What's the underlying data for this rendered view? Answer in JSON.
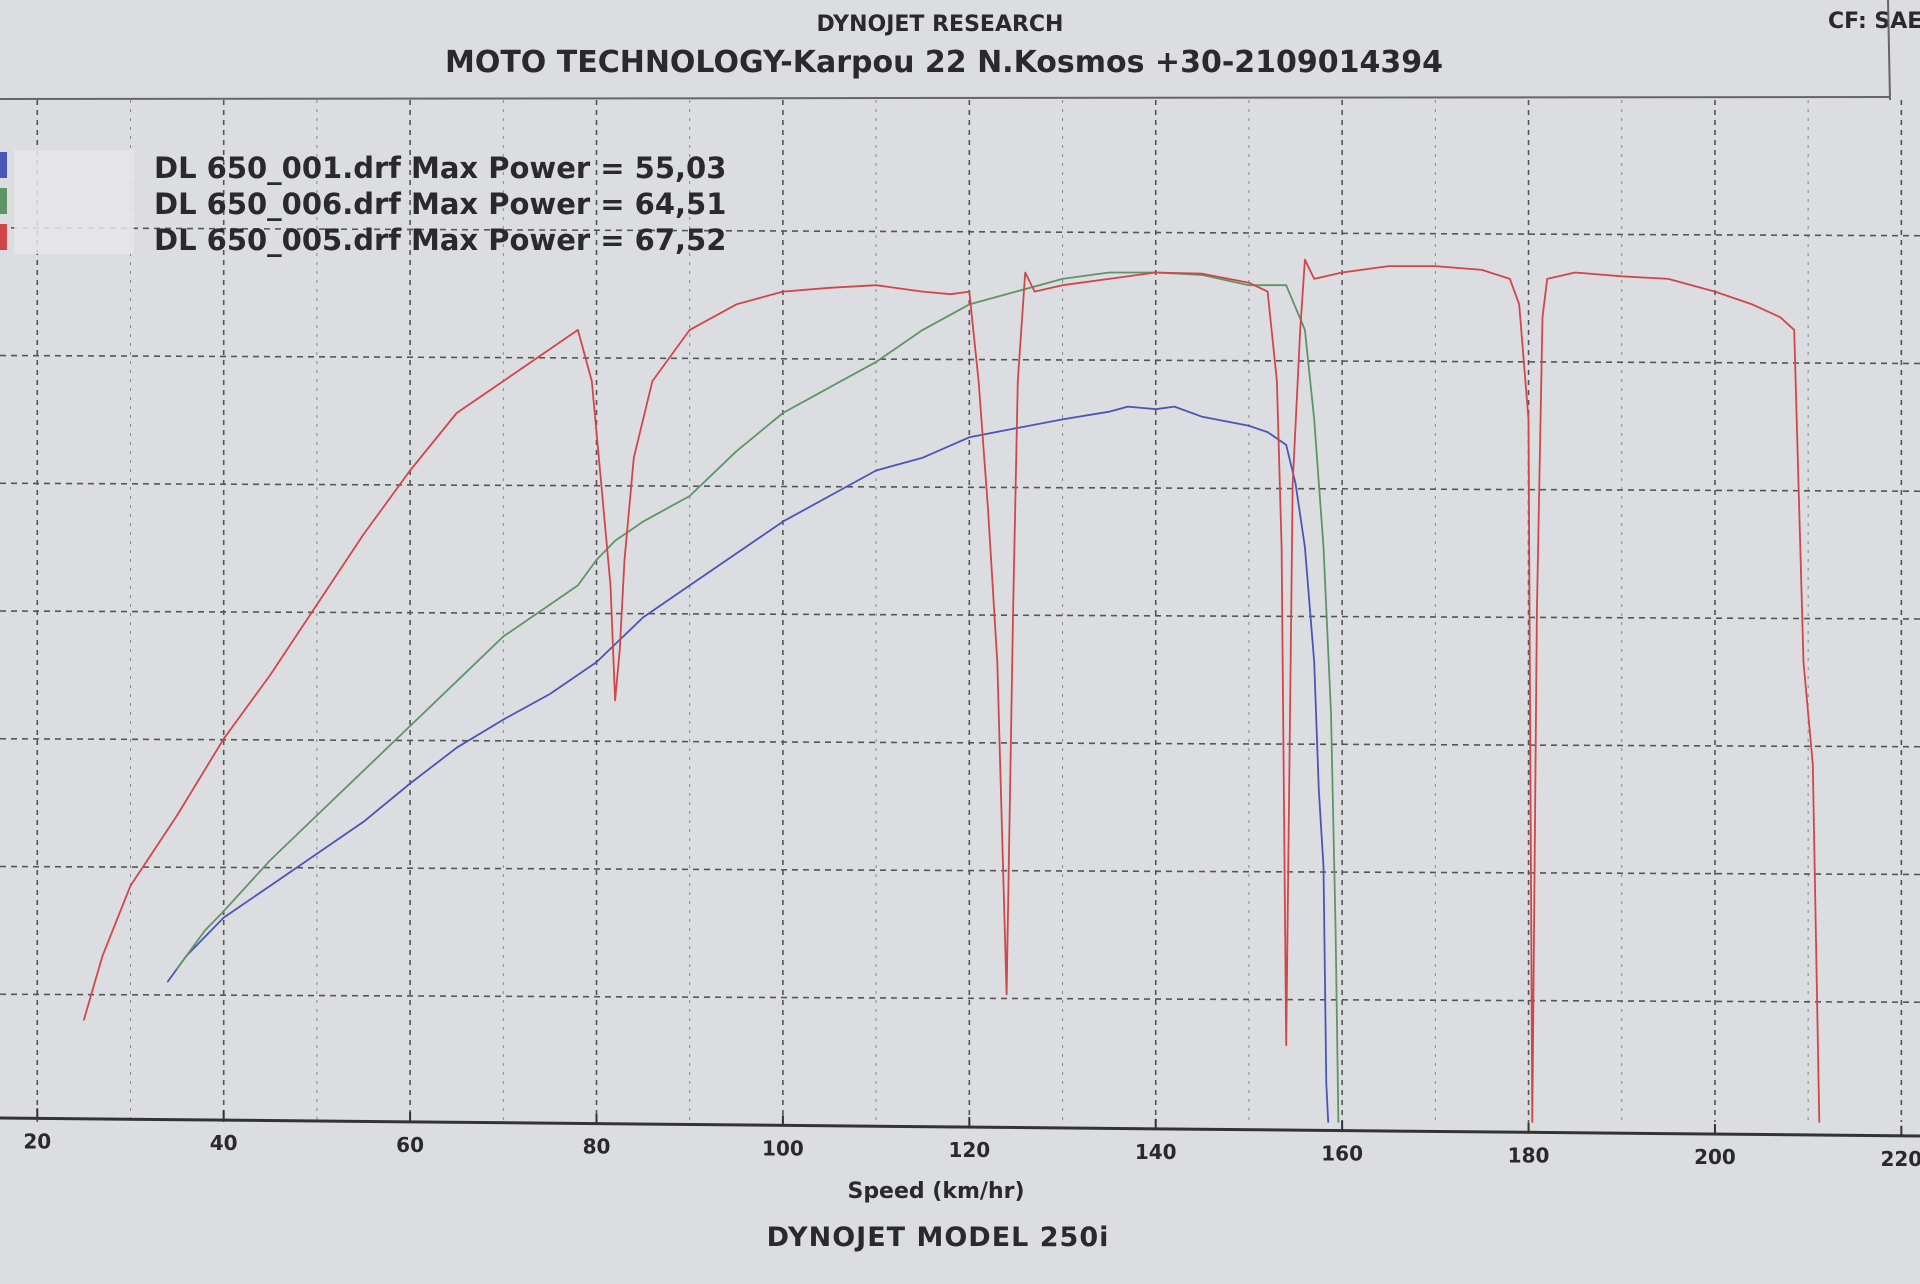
{
  "header": {
    "company": "DYNOJET RESEARCH",
    "shop": "MOTO TECHNOLOGY-Karpou 22 N.Kosmos +30-2109014394",
    "correction": "CF: SAE"
  },
  "footer": {
    "model": "DYNOJET  MODEL  250i"
  },
  "colors": {
    "background": "#dcdde0",
    "grid": "#555555",
    "text": "#2a2a2e",
    "run_001": "#4a55b8",
    "run_006": "#5f9466",
    "run_005": "#d0474a"
  },
  "chart_data": {
    "type": "line",
    "title": "DYNOJET RESEARCH",
    "subtitle": "MOTO TECHNOLOGY-Karpou 22 N.Kosmos +30-2109014394",
    "xlabel": "Speed (km/hr)",
    "ylabel": "",
    "xlim": [
      16,
      222
    ],
    "ylim": [
      0,
      80
    ],
    "x_ticks": [
      20,
      40,
      60,
      80,
      100,
      120,
      140,
      160,
      180,
      200,
      220
    ],
    "x_tick_labels": [
      "20",
      "40",
      "60",
      "80",
      "100",
      "120",
      "140",
      "160",
      "180",
      "200",
      "220"
    ],
    "y_grid_values": [
      10,
      20,
      30,
      40,
      50,
      60,
      70
    ],
    "grid": true,
    "legend_position": "top-left",
    "series": [
      {
        "name": "DL 650_001.drf Max Power = 55,03",
        "color": "#4a55b8",
        "points": [
          [
            34,
            11
          ],
          [
            36,
            13
          ],
          [
            38,
            14.5
          ],
          [
            40,
            16
          ],
          [
            45,
            18.5
          ],
          [
            50,
            21
          ],
          [
            55,
            23.5
          ],
          [
            60,
            26.5
          ],
          [
            65,
            29.3
          ],
          [
            70,
            31.5
          ],
          [
            75,
            33.5
          ],
          [
            80,
            36
          ],
          [
            85,
            39.5
          ],
          [
            90,
            42
          ],
          [
            95,
            44.5
          ],
          [
            100,
            47
          ],
          [
            105,
            49
          ],
          [
            110,
            51
          ],
          [
            115,
            52
          ],
          [
            120,
            53.6
          ],
          [
            125,
            54.3
          ],
          [
            130,
            55
          ],
          [
            135,
            55.6
          ],
          [
            137,
            56
          ],
          [
            140,
            55.8
          ],
          [
            142,
            56
          ],
          [
            145,
            55.2
          ],
          [
            150,
            54.5
          ],
          [
            152,
            54
          ],
          [
            154,
            53
          ],
          [
            155,
            50
          ],
          [
            156,
            45
          ],
          [
            157,
            36
          ],
          [
            157.5,
            26
          ],
          [
            158,
            20
          ],
          [
            158.3,
            3
          ],
          [
            158.5,
            0
          ]
        ]
      },
      {
        "name": "DL 650_006.drf Max Power = 64,51",
        "color": "#5f9466",
        "points": [
          [
            35,
            12
          ],
          [
            38,
            15
          ],
          [
            40,
            16.5
          ],
          [
            45,
            20.5
          ],
          [
            50,
            24
          ],
          [
            55,
            27.5
          ],
          [
            60,
            31
          ],
          [
            65,
            34.5
          ],
          [
            70,
            38
          ],
          [
            75,
            40.5
          ],
          [
            78,
            42
          ],
          [
            80,
            44
          ],
          [
            82,
            45.5
          ],
          [
            85,
            47
          ],
          [
            90,
            49
          ],
          [
            95,
            52.5
          ],
          [
            100,
            55.5
          ],
          [
            105,
            57.5
          ],
          [
            110,
            59.5
          ],
          [
            115,
            62
          ],
          [
            120,
            64
          ],
          [
            125,
            65
          ],
          [
            130,
            66
          ],
          [
            135,
            66.5
          ],
          [
            140,
            66.5
          ],
          [
            145,
            66.3
          ],
          [
            150,
            65.5
          ],
          [
            154,
            65.5
          ],
          [
            156,
            62
          ],
          [
            157,
            55
          ],
          [
            158,
            45
          ],
          [
            158.8,
            32
          ],
          [
            159.3,
            15
          ],
          [
            159.6,
            0
          ]
        ]
      },
      {
        "name": "DL 650_005.drf Max Power = 67,52",
        "color": "#d0474a",
        "points": [
          [
            25,
            8
          ],
          [
            27,
            13
          ],
          [
            30,
            18.5
          ],
          [
            35,
            24
          ],
          [
            40,
            30
          ],
          [
            45,
            35
          ],
          [
            50,
            40.5
          ],
          [
            55,
            46
          ],
          [
            60,
            51
          ],
          [
            65,
            55.5
          ],
          [
            70,
            58
          ],
          [
            75,
            60.5
          ],
          [
            78,
            62
          ],
          [
            79.5,
            58
          ],
          [
            80.5,
            50
          ],
          [
            81.5,
            42
          ],
          [
            82,
            33
          ],
          [
            82.5,
            37
          ],
          [
            83,
            44
          ],
          [
            84,
            52
          ],
          [
            86,
            58
          ],
          [
            90,
            62
          ],
          [
            95,
            64
          ],
          [
            100,
            65
          ],
          [
            105,
            65.3
          ],
          [
            110,
            65.5
          ],
          [
            115,
            65
          ],
          [
            118,
            64.8
          ],
          [
            120,
            65
          ],
          [
            121,
            58
          ],
          [
            122,
            48
          ],
          [
            123,
            36
          ],
          [
            124,
            10
          ],
          [
            124.7,
            40
          ],
          [
            125.2,
            58
          ],
          [
            126,
            66.5
          ],
          [
            127,
            65
          ],
          [
            130,
            65.5
          ],
          [
            135,
            66
          ],
          [
            140,
            66.5
          ],
          [
            145,
            66.4
          ],
          [
            150,
            65.7
          ],
          [
            152,
            65
          ],
          [
            153,
            58
          ],
          [
            153.5,
            45
          ],
          [
            154,
            6
          ],
          [
            154.7,
            50
          ],
          [
            155.5,
            62
          ],
          [
            156,
            67.5
          ],
          [
            157,
            66
          ],
          [
            160,
            66.5
          ],
          [
            165,
            67
          ],
          [
            170,
            67
          ],
          [
            175,
            66.7
          ],
          [
            178,
            66
          ],
          [
            179,
            64
          ],
          [
            180,
            55
          ],
          [
            180.4,
            0
          ],
          [
            180.9,
            40
          ],
          [
            181.5,
            63
          ],
          [
            182,
            66
          ],
          [
            185,
            66.5
          ],
          [
            190,
            66.2
          ],
          [
            195,
            66
          ],
          [
            200,
            65
          ],
          [
            204,
            64
          ],
          [
            207,
            63
          ],
          [
            208.5,
            62
          ],
          [
            209.5,
            36
          ],
          [
            210.5,
            28
          ],
          [
            211.2,
            0
          ]
        ]
      }
    ]
  }
}
